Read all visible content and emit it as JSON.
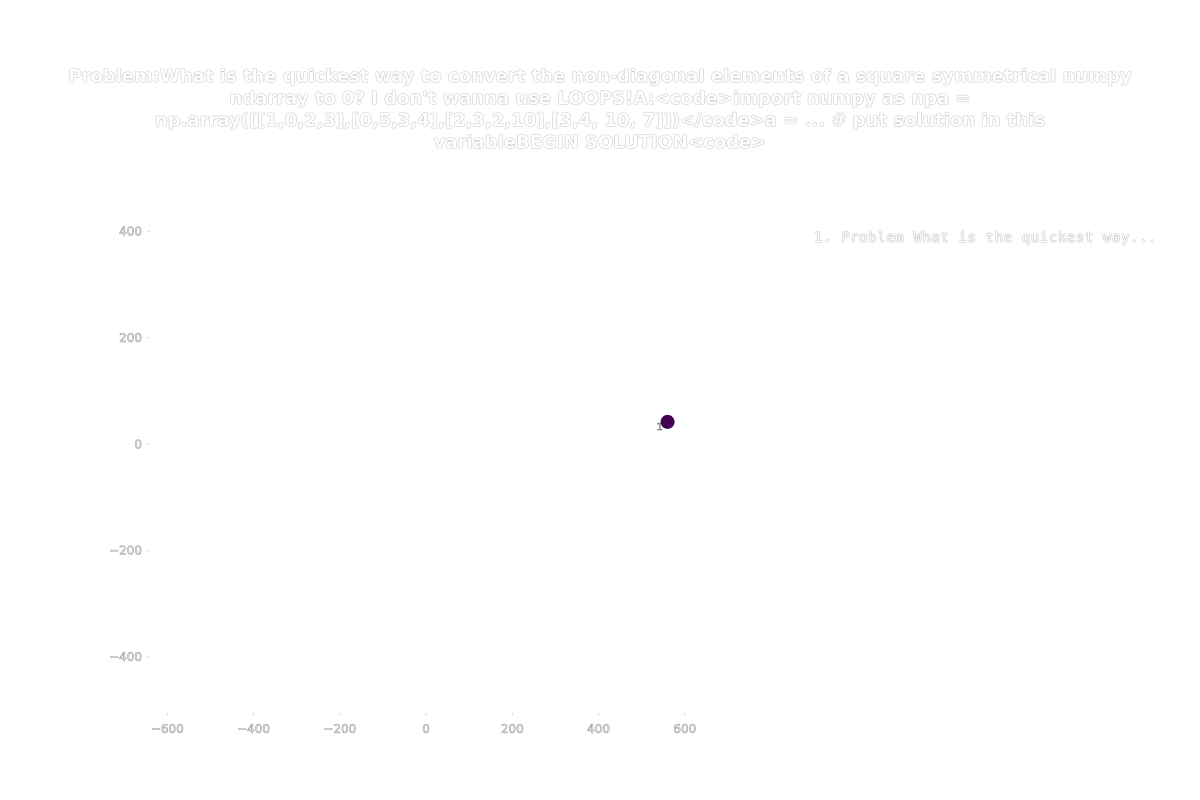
{
  "title_lines": [
    "Problem:What is the quickest way to convert the non-diagonal elements of a square symmetrical numpy",
    "ndarray to 0? I don't wanna use LOOPS!A:<code>import numpy as npa =",
    "np.array([[1,0,2,3],[0,5,3,4],[2,3,2,10],[3,4, 10, 7]])</code>a = ... # put solution in this",
    "variableBEGIN SOLUTION<code>"
  ],
  "legend": {
    "entries": [
      "1. Problem What is the quickest way..."
    ]
  },
  "chart_data": {
    "type": "scatter",
    "title": "Problem:What is the quickest way to convert the non-diagonal elements of a square symmetrical numpy ndarray to 0? I don't wanna use LOOPS!A:<code>import numpy as npa = np.array([[1,0,2,3],[0,5,3,4],[2,3,2,10],[3,4, 10, 7]])</code>a = ... # put solution in this variableBEGIN SOLUTION<code>",
    "xlim": [
      -640,
      670
    ],
    "ylim": [
      -505,
      412
    ],
    "x_ticks": [
      -600,
      -400,
      -200,
      0,
      200,
      400,
      600
    ],
    "x_tick_labels": [
      "−600",
      "−400",
      "−200",
      "0",
      "200",
      "400",
      "600"
    ],
    "y_ticks": [
      -400,
      -200,
      0,
      200,
      400
    ],
    "y_tick_labels": [
      "−400",
      "−200",
      "0",
      "200",
      "400"
    ],
    "grid": false,
    "legend_placement": "top-right",
    "points": [
      {
        "x": 560,
        "y": 42,
        "label": "1",
        "color": "#440154"
      }
    ]
  }
}
